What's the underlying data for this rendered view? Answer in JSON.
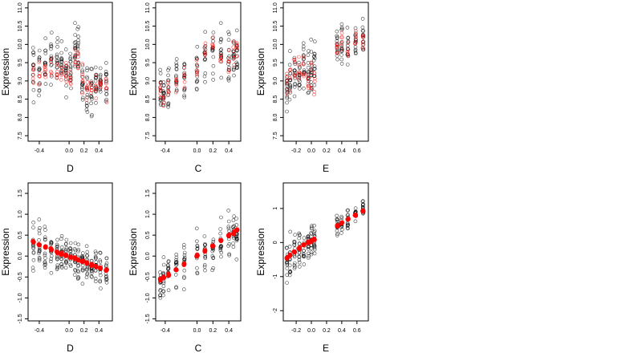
{
  "figure": {
    "panel_count": 6
  },
  "chart_data": [
    {
      "type": "scatter",
      "xlabel": "D",
      "ylabel": "Expression",
      "xlim": [
        -0.55,
        0.58
      ],
      "ylim": [
        7.35,
        11.15
      ],
      "xticks": [
        -0.4,
        0.0,
        0.2,
        0.4
      ],
      "xtick_labels": [
        "-0.4",
        "0.0",
        "0.2",
        "0.4"
      ],
      "yticks": [
        7.5,
        8.0,
        8.5,
        9.0,
        9.5,
        10.0,
        10.5,
        11.0
      ],
      "ytick_labels": [
        "7.5",
        "8.0",
        "8.5",
        "9.0",
        "9.5",
        "10.0",
        "10.5",
        "11.0"
      ],
      "x_groups": [
        -0.48,
        -0.4,
        -0.32,
        -0.24,
        -0.16,
        -0.1,
        -0.04,
        0.02,
        0.08,
        0.12,
        0.18,
        0.24,
        0.3,
        0.36,
        0.42,
        0.5
      ],
      "series": [
        {
          "color": "#000000",
          "marker": "open-circle",
          "y_center": [
            9.3,
            9.3,
            9.4,
            9.6,
            9.5,
            9.4,
            9.3,
            9.2,
            9.7,
            9.8,
            9.1,
            8.9,
            8.7,
            8.9,
            9.0,
            8.9
          ],
          "y_spread": [
            0.75,
            0.7,
            0.7,
            0.7,
            0.7,
            0.75,
            0.7,
            0.75,
            0.75,
            0.8,
            0.7,
            0.65,
            0.6,
            0.65,
            0.6,
            0.55
          ],
          "n_per_group": 14
        },
        {
          "color": "#ff0000",
          "marker": "open-circle",
          "y_center": [
            9.2,
            9.3,
            9.3,
            9.4,
            9.3,
            9.3,
            9.2,
            9.1,
            9.6,
            9.5,
            9.0,
            8.8,
            8.8,
            8.9,
            8.9,
            8.8
          ],
          "y_spread": [
            0.35,
            0.35,
            0.35,
            0.35,
            0.35,
            0.35,
            0.35,
            0.35,
            0.4,
            0.4,
            0.35,
            0.3,
            0.3,
            0.3,
            0.3,
            0.3
          ],
          "n_per_group": 6
        }
      ]
    },
    {
      "type": "scatter",
      "xlabel": "C",
      "ylabel": "Expression",
      "xlim": [
        -0.52,
        0.55
      ],
      "ylim": [
        7.35,
        11.15
      ],
      "xticks": [
        -0.4,
        0.0,
        0.2,
        0.4
      ],
      "xtick_labels": [
        "-0.4",
        "0.0",
        "0.2",
        "0.4"
      ],
      "yticks": [
        7.5,
        8.0,
        8.5,
        9.0,
        9.5,
        10.0,
        10.5,
        11.0
      ],
      "ytick_labels": [
        "7.5",
        "8.0",
        "8.5",
        "9.0",
        "9.5",
        "10.0",
        "10.5",
        "11.0"
      ],
      "x_groups": [
        -0.46,
        -0.42,
        -0.36,
        -0.26,
        -0.16,
        0.0,
        0.1,
        0.2,
        0.3,
        0.4,
        0.46,
        0.5
      ],
      "series": [
        {
          "color": "#000000",
          "marker": "open-circle",
          "y_center": [
            8.9,
            8.6,
            8.8,
            9.1,
            9.2,
            9.3,
            9.6,
            9.7,
            9.8,
            9.6,
            9.6,
            9.7
          ],
          "y_spread": [
            0.7,
            0.6,
            0.6,
            0.65,
            0.6,
            0.7,
            0.75,
            0.75,
            0.7,
            0.7,
            0.7,
            0.65
          ],
          "n_per_group": 14
        },
        {
          "color": "#ff0000",
          "marker": "open-circle",
          "y_center": [
            8.6,
            8.5,
            8.7,
            8.9,
            9.0,
            9.3,
            9.8,
            10.0,
            9.6,
            9.4,
            9.7,
            9.8
          ],
          "y_spread": [
            0.3,
            0.25,
            0.25,
            0.3,
            0.3,
            0.35,
            0.35,
            0.35,
            0.35,
            0.35,
            0.35,
            0.3
          ],
          "n_per_group": 6
        }
      ]
    },
    {
      "type": "scatter",
      "xlabel": "E",
      "ylabel": "Expression",
      "xlim": [
        -0.37,
        0.75
      ],
      "ylim": [
        7.35,
        11.15
      ],
      "xticks": [
        -0.2,
        0.0,
        0.2,
        0.4,
        0.6
      ],
      "xtick_labels": [
        "-0.2",
        "0.0",
        "0.2",
        "0.4",
        "0.6"
      ],
      "yticks": [
        7.5,
        8.0,
        8.5,
        9.0,
        9.5,
        10.0,
        10.5,
        11.0
      ],
      "ytick_labels": [
        "7.5",
        "8.0",
        "8.5",
        "9.0",
        "9.5",
        "10.0",
        "10.5",
        "11.0"
      ],
      "x_groups": [
        -0.32,
        -0.28,
        -0.22,
        -0.16,
        -0.1,
        -0.04,
        0.0,
        0.04,
        0.34,
        0.4,
        0.48,
        0.58,
        0.68
      ],
      "series": [
        {
          "color": "#000000",
          "marker": "open-circle",
          "y_center": [
            8.9,
            9.0,
            9.2,
            9.3,
            9.4,
            9.3,
            9.3,
            9.4,
            9.9,
            10.0,
            9.9,
            10.1,
            10.2
          ],
          "y_spread": [
            0.7,
            0.65,
            0.65,
            0.65,
            0.65,
            0.7,
            0.75,
            0.7,
            0.45,
            0.45,
            0.45,
            0.45,
            0.45
          ],
          "n_per_group": 14
        },
        {
          "color": "#ff0000",
          "marker": "open-circle",
          "y_center": [
            8.9,
            9.1,
            9.3,
            9.4,
            9.3,
            9.2,
            9.1,
            9.0,
            9.8,
            10.0,
            9.9,
            10.1,
            10.2
          ],
          "y_spread": [
            0.45,
            0.4,
            0.4,
            0.4,
            0.4,
            0.4,
            0.45,
            0.4,
            0.3,
            0.3,
            0.3,
            0.3,
            0.3
          ],
          "n_per_group": 6
        }
      ]
    },
    {
      "type": "scatter",
      "xlabel": "D",
      "ylabel": "Expression",
      "xlim": [
        -0.55,
        0.58
      ],
      "ylim": [
        -1.55,
        1.75
      ],
      "xticks": [
        -0.4,
        0.0,
        0.2,
        0.4
      ],
      "xtick_labels": [
        "-0.4",
        "0.0",
        "0.2",
        "0.4"
      ],
      "yticks": [
        -1.5,
        -1.0,
        -0.5,
        0.0,
        0.5,
        1.0,
        1.5
      ],
      "ytick_labels": [
        "-1.5",
        "-1.0",
        "-0.5",
        "0.0",
        "0.5",
        "1.0",
        "1.5"
      ],
      "x_groups": [
        -0.48,
        -0.4,
        -0.32,
        -0.24,
        -0.16,
        -0.1,
        -0.04,
        0.02,
        0.08,
        0.12,
        0.18,
        0.24,
        0.3,
        0.36,
        0.42,
        0.5
      ],
      "series": [
        {
          "color": "#000000",
          "marker": "open-circle",
          "y_center": [
            0.3,
            0.25,
            0.2,
            0.15,
            0.1,
            0.05,
            0.0,
            0.0,
            -0.05,
            -0.1,
            -0.15,
            -0.2,
            -0.2,
            -0.25,
            -0.3,
            -0.35
          ],
          "y_spread": [
            0.55,
            0.55,
            0.55,
            0.55,
            0.5,
            0.5,
            0.5,
            0.5,
            0.5,
            0.5,
            0.5,
            0.45,
            0.45,
            0.45,
            0.45,
            0.4
          ],
          "n_per_group": 14
        },
        {
          "color": "#ff0000",
          "marker": "filled-circle",
          "y_center": [
            0.34,
            0.27,
            0.21,
            0.15,
            0.1,
            0.06,
            0.02,
            -0.02,
            -0.06,
            -0.09,
            -0.13,
            -0.17,
            -0.21,
            -0.25,
            -0.29,
            -0.34
          ],
          "y_spread": [
            0.03,
            0.03,
            0.03,
            0.03,
            0.03,
            0.03,
            0.03,
            0.03,
            0.03,
            0.03,
            0.03,
            0.03,
            0.03,
            0.03,
            0.03,
            0.03
          ],
          "n_per_group": 3
        }
      ]
    },
    {
      "type": "scatter",
      "xlabel": "C",
      "ylabel": "Expression",
      "xlim": [
        -0.52,
        0.55
      ],
      "ylim": [
        -1.55,
        1.75
      ],
      "xticks": [
        -0.4,
        0.0,
        0.2,
        0.4
      ],
      "xtick_labels": [
        "-0.4",
        "0.0",
        "0.2",
        "0.4"
      ],
      "yticks": [
        -1.5,
        -1.0,
        -0.5,
        0.0,
        0.5,
        1.0,
        1.5
      ],
      "ytick_labels": [
        "-1.5",
        "-1.0",
        "-0.5",
        "0.0",
        "0.5",
        "1.0",
        "1.5"
      ],
      "x_groups": [
        -0.46,
        -0.42,
        -0.36,
        -0.26,
        -0.16,
        0.0,
        0.1,
        0.2,
        0.3,
        0.4,
        0.46,
        0.5
      ],
      "series": [
        {
          "color": "#000000",
          "marker": "open-circle",
          "y_center": [
            -0.55,
            -0.5,
            -0.45,
            -0.3,
            -0.2,
            0.0,
            0.1,
            0.2,
            0.3,
            0.45,
            0.5,
            0.55
          ],
          "y_spread": [
            0.5,
            0.45,
            0.45,
            0.45,
            0.45,
            0.45,
            0.45,
            0.45,
            0.45,
            0.5,
            0.5,
            0.5
          ],
          "n_per_group": 14
        },
        {
          "color": "#ff0000",
          "marker": "filled-circle",
          "y_center": [
            -0.56,
            -0.52,
            -0.45,
            -0.33,
            -0.2,
            0.0,
            0.12,
            0.24,
            0.37,
            0.49,
            0.56,
            0.62
          ],
          "y_spread": [
            0.03,
            0.03,
            0.03,
            0.03,
            0.03,
            0.03,
            0.03,
            0.03,
            0.03,
            0.03,
            0.03,
            0.03
          ],
          "n_per_group": 3
        }
      ]
    },
    {
      "type": "scatter",
      "xlabel": "E",
      "ylabel": "Expression",
      "xlim": [
        -0.37,
        0.75
      ],
      "ylim": [
        -2.3,
        1.75
      ],
      "xticks": [
        -0.2,
        0.0,
        0.2,
        0.4,
        0.6
      ],
      "xtick_labels": [
        "-0.2",
        "0.0",
        "0.2",
        "0.4",
        "0.6"
      ],
      "yticks": [
        -2,
        -1,
        0,
        1
      ],
      "ytick_labels": [
        "-2",
        "-1",
        "0",
        "1"
      ],
      "x_groups": [
        -0.32,
        -0.28,
        -0.22,
        -0.16,
        -0.1,
        -0.04,
        0.0,
        0.04,
        0.34,
        0.4,
        0.48,
        0.58,
        0.68
      ],
      "series": [
        {
          "color": "#000000",
          "marker": "open-circle",
          "y_center": [
            -0.45,
            -0.35,
            -0.25,
            -0.15,
            -0.05,
            0.0,
            0.05,
            0.1,
            0.5,
            0.55,
            0.65,
            0.8,
            1.0
          ],
          "y_spread": [
            0.6,
            0.55,
            0.55,
            0.5,
            0.5,
            0.5,
            0.55,
            0.5,
            0.3,
            0.3,
            0.3,
            0.3,
            0.3
          ],
          "n_per_group": 14
        },
        {
          "color": "#ff0000",
          "marker": "filled-circle",
          "y_center": [
            -0.45,
            -0.38,
            -0.28,
            -0.18,
            -0.08,
            0.0,
            0.04,
            0.08,
            0.5,
            0.58,
            0.68,
            0.8,
            0.92
          ],
          "y_spread": [
            0.03,
            0.03,
            0.03,
            0.03,
            0.03,
            0.03,
            0.03,
            0.03,
            0.03,
            0.03,
            0.03,
            0.03,
            0.03
          ],
          "n_per_group": 3
        }
      ]
    }
  ]
}
